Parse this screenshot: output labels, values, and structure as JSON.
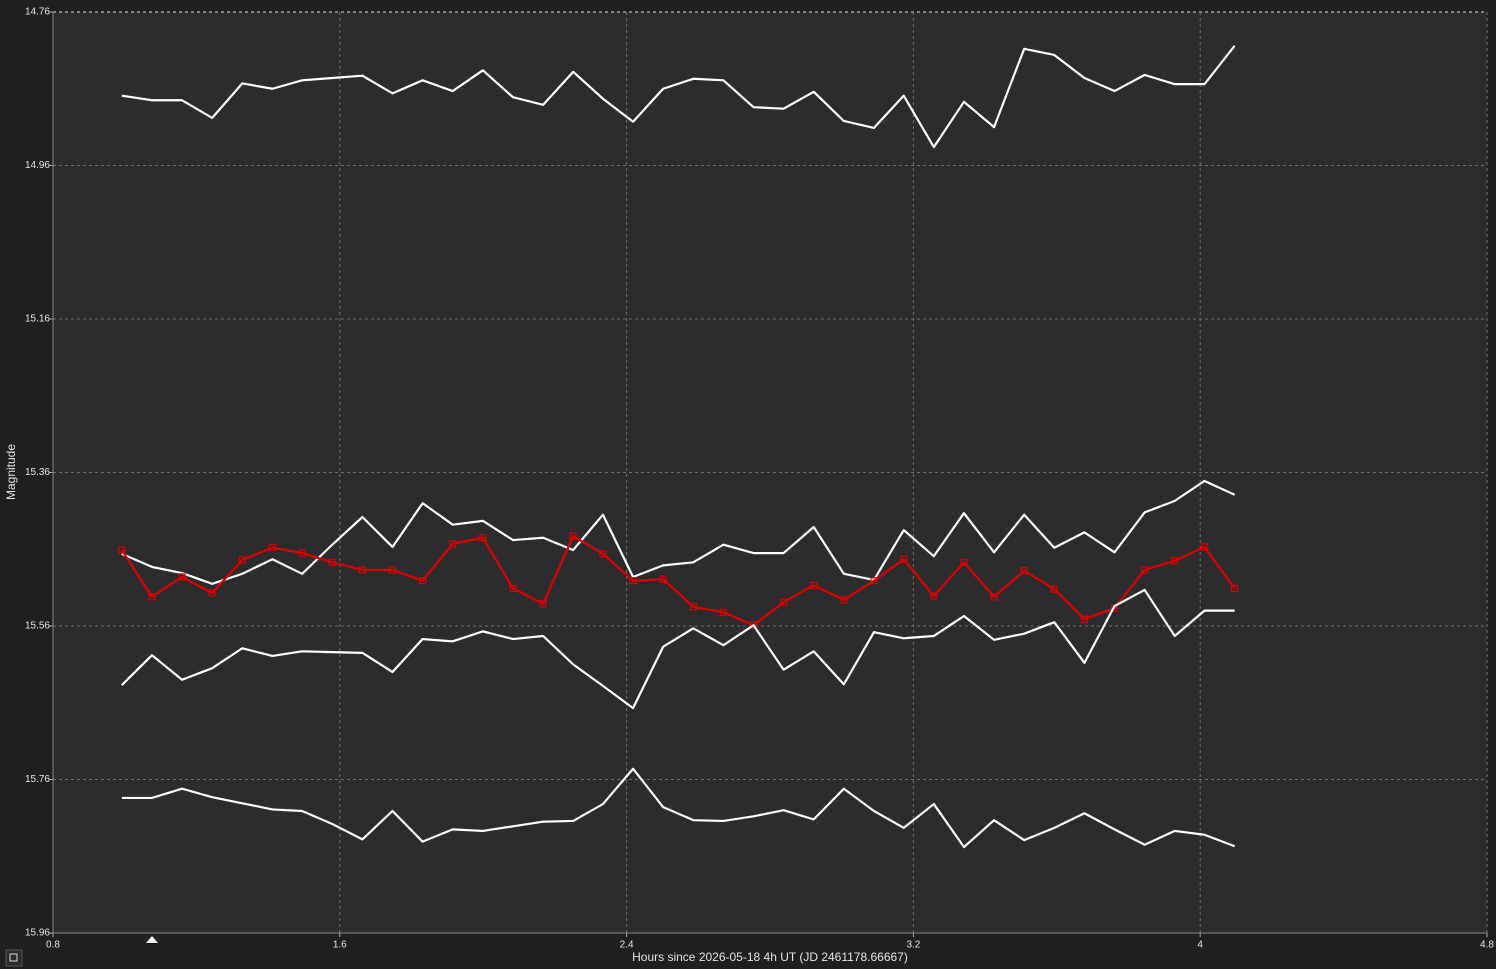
{
  "chart_data": {
    "type": "line",
    "xlabel": "Hours since 2026-05-18 4h UT (JD 2461178.66667)",
    "ylabel": "Magnitude",
    "x": [
      0.992,
      1.076,
      1.16,
      1.244,
      1.328,
      1.412,
      1.495,
      1.579,
      1.663,
      1.747,
      1.831,
      1.915,
      1.999,
      2.083,
      2.167,
      2.251,
      2.334,
      2.418,
      2.502,
      2.586,
      2.67,
      2.754,
      2.838,
      2.922,
      3.006,
      3.09,
      3.173,
      3.257,
      3.341,
      3.425,
      3.509,
      3.593,
      3.677,
      3.761,
      3.845,
      3.929,
      4.012,
      4.096
    ],
    "series": [
      {
        "color": "#ffffff",
        "values": [
          14.869,
          14.875,
          14.875,
          14.898,
          14.853,
          14.86,
          14.849,
          14.846,
          14.843,
          14.866,
          14.849,
          14.863,
          14.836,
          14.871,
          14.881,
          14.838,
          14.873,
          14.903,
          14.86,
          14.847,
          14.849,
          14.884,
          14.886,
          14.864,
          14.902,
          14.911,
          14.869,
          14.936,
          14.877,
          14.91,
          14.808,
          14.816,
          14.846,
          14.863,
          14.842,
          14.854,
          14.854,
          14.804
        ]
      },
      {
        "color": "#ffffff",
        "values": [
          15.466,
          15.483,
          15.491,
          15.505,
          15.492,
          15.473,
          15.492,
          15.454,
          15.418,
          15.457,
          15.4,
          15.428,
          15.423,
          15.448,
          15.445,
          15.461,
          15.415,
          15.496,
          15.481,
          15.477,
          15.454,
          15.465,
          15.465,
          15.431,
          15.492,
          15.5,
          15.435,
          15.469,
          15.413,
          15.464,
          15.415,
          15.458,
          15.438,
          15.464,
          15.412,
          15.397,
          15.371,
          15.389
        ]
      },
      {
        "color": "#e00000",
        "marker": "square",
        "values": [
          15.461,
          15.522,
          15.496,
          15.517,
          15.474,
          15.458,
          15.465,
          15.477,
          15.487,
          15.487,
          15.501,
          15.453,
          15.445,
          15.511,
          15.531,
          15.443,
          15.466,
          15.501,
          15.499,
          15.535,
          15.542,
          15.559,
          15.529,
          15.507,
          15.526,
          15.501,
          15.473,
          15.521,
          15.477,
          15.522,
          15.488,
          15.512,
          15.551,
          15.537,
          15.487,
          15.475,
          15.457,
          15.511
        ]
      },
      {
        "color": "#ffffff",
        "values": [
          15.637,
          15.598,
          15.63,
          15.615,
          15.589,
          15.599,
          15.593,
          15.594,
          15.595,
          15.62,
          15.577,
          15.58,
          15.567,
          15.577,
          15.573,
          15.61,
          15.638,
          15.667,
          15.587,
          15.563,
          15.585,
          15.559,
          15.617,
          15.593,
          15.636,
          15.568,
          15.576,
          15.573,
          15.547,
          15.578,
          15.57,
          15.555,
          15.608,
          15.534,
          15.513,
          15.573,
          15.54,
          15.54
        ]
      },
      {
        "color": "#ffffff",
        "values": [
          15.784,
          15.784,
          15.772,
          15.783,
          15.791,
          15.799,
          15.801,
          15.818,
          15.838,
          15.801,
          15.841,
          15.825,
          15.827,
          15.821,
          15.815,
          15.814,
          15.792,
          15.746,
          15.796,
          15.813,
          15.814,
          15.808,
          15.8,
          15.812,
          15.772,
          15.801,
          15.823,
          15.792,
          15.848,
          15.813,
          15.839,
          15.823,
          15.804,
          15.825,
          15.845,
          15.827,
          15.832,
          15.847
        ]
      }
    ],
    "xlim": [
      0.8,
      4.8
    ],
    "xticks": [
      0.8,
      1.6,
      2.4,
      3.2,
      4,
      4.8
    ],
    "ylim": [
      14.76,
      15.96
    ],
    "yticks": [
      14.76,
      14.96,
      15.16,
      15.36,
      15.56,
      15.76,
      15.96
    ],
    "invert_y": true,
    "grid": true
  }
}
